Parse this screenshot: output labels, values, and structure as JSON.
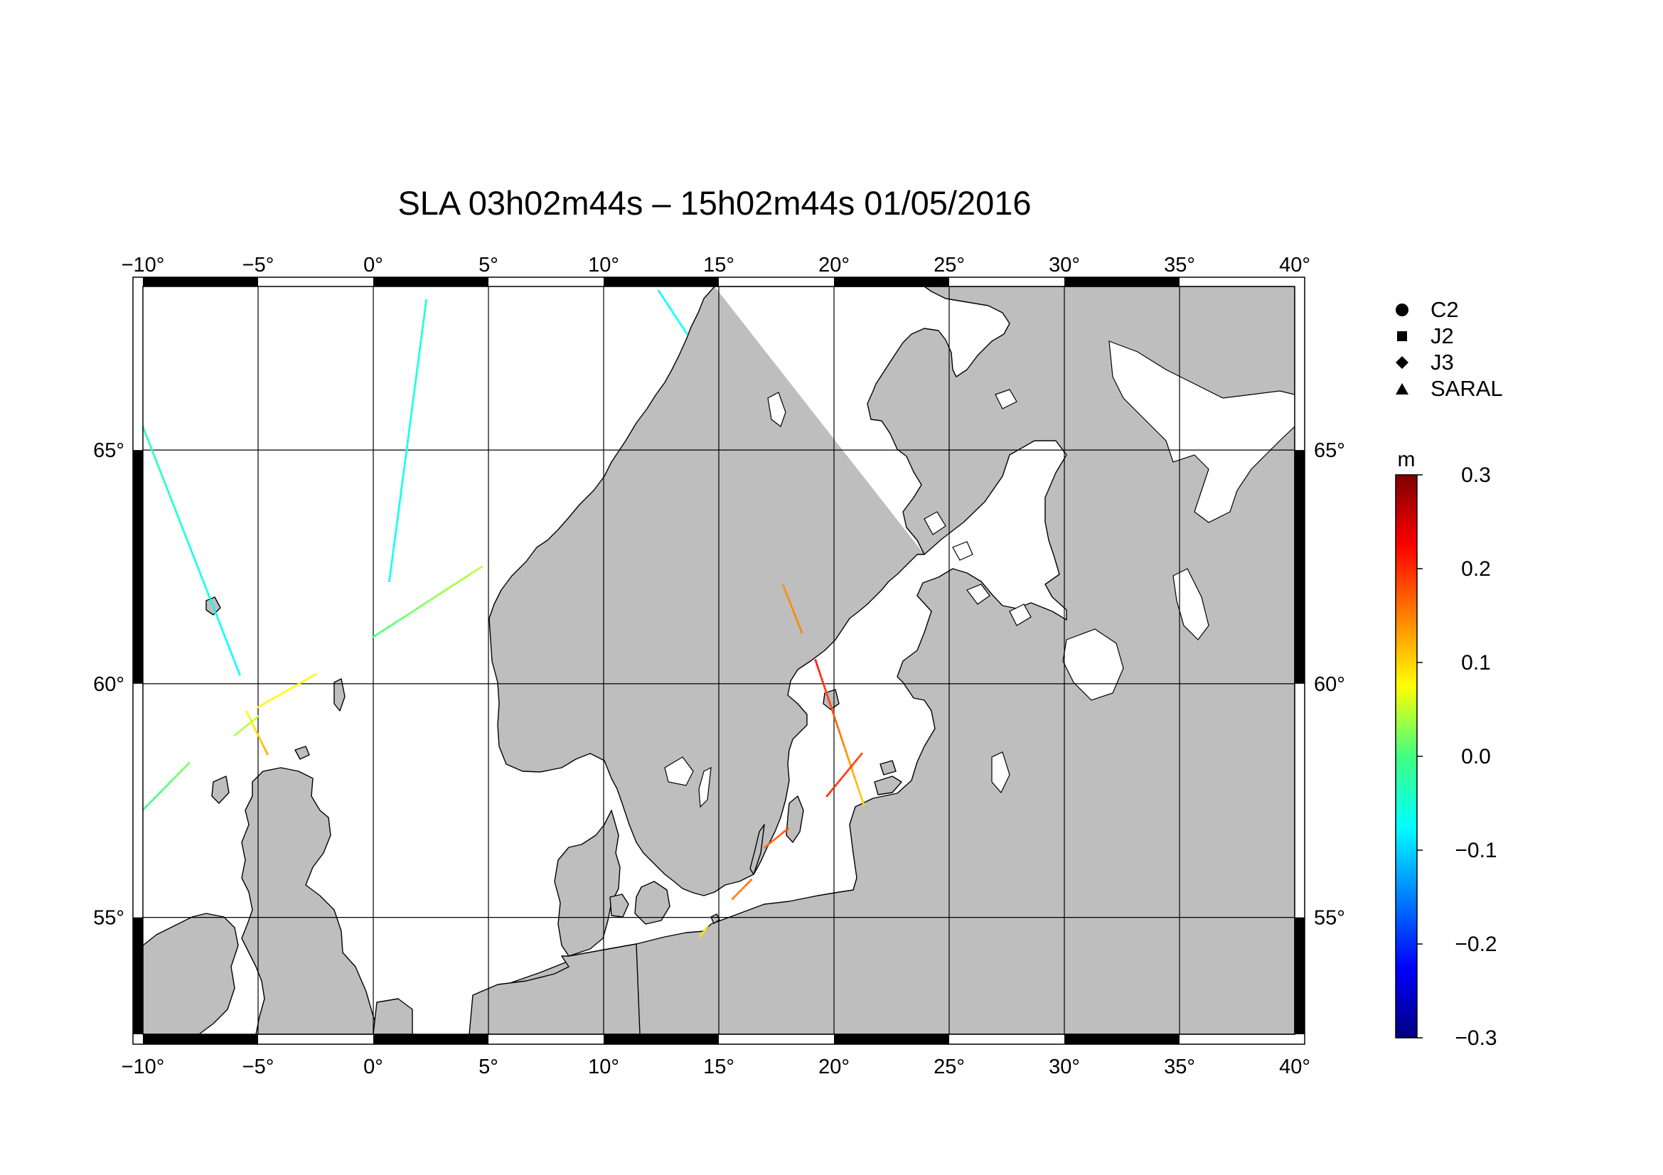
{
  "title": "SLA 03h02m44s – 15h02m44s 01/05/2016",
  "map": {
    "lon_range": [
      -10,
      40
    ],
    "lat_range": [
      52.5,
      68.5
    ],
    "lon_ticks": [
      -10,
      -5,
      0,
      5,
      10,
      15,
      20,
      25,
      30,
      35,
      40
    ],
    "lat_ticks": [
      55,
      60,
      65
    ],
    "lon_tick_labels": [
      "−10°",
      "−5°",
      "0°",
      "5°",
      "10°",
      "15°",
      "20°",
      "25°",
      "30°",
      "35°",
      "40°"
    ],
    "lat_tick_labels": [
      "55°",
      "60°",
      "65°"
    ],
    "grid": true,
    "land_color": "#bebebe",
    "sea_color": "#ffffff"
  },
  "legend": {
    "items": [
      {
        "label": "C2",
        "symbol": "circle"
      },
      {
        "label": "J2",
        "symbol": "square"
      },
      {
        "label": "J3",
        "symbol": "diamond"
      },
      {
        "label": "SARAL",
        "symbol": "triangle"
      }
    ]
  },
  "colorbar": {
    "unit": "m",
    "min": -0.3,
    "max": 0.3,
    "ticks": [
      -0.3,
      -0.2,
      -0.1,
      0.0,
      0.1,
      0.2,
      0.3
    ],
    "tick_labels": [
      "−0.3",
      "−0.2",
      "−0.1",
      "0.0",
      "0.1",
      "0.2",
      "0.3"
    ],
    "colormap": "jet"
  },
  "chart_data": {
    "type": "scatter",
    "title": "SLA 03h02m44s – 15h02m44s 01/05/2016",
    "x_unit": "longitude (deg)",
    "y_unit": "latitude (deg)",
    "value_unit": "m",
    "tracks": [
      {
        "from": [
          2.3,
          68.2
        ],
        "to": [
          0.7,
          62.2
        ],
        "value_start": -0.05,
        "value_end": -0.07
      },
      {
        "from": [
          -10.0,
          65.5
        ],
        "to": [
          -5.8,
          60.2
        ],
        "value_start": -0.03,
        "value_end": -0.08
      },
      {
        "from": [
          -5.5,
          59.4
        ],
        "to": [
          -4.6,
          58.5
        ],
        "value_start": 0.07,
        "value_end": 0.13
      },
      {
        "from": [
          0.0,
          61.0
        ],
        "to": [
          4.7,
          62.5
        ],
        "value_start": 0.0,
        "value_end": 0.05
      },
      {
        "from": [
          -5.0,
          59.5
        ],
        "to": [
          -2.5,
          60.2
        ],
        "value_start": 0.07,
        "value_end": 0.08
      },
      {
        "from": [
          -10.0,
          57.3
        ],
        "to": [
          -8.0,
          58.3
        ],
        "value_start": -0.01,
        "value_end": 0.02
      },
      {
        "from": [
          -6.0,
          58.9
        ],
        "to": [
          -5.0,
          59.3
        ],
        "value_start": 0.04,
        "value_end": 0.05
      },
      {
        "from": [
          12.4,
          68.4
        ],
        "to": [
          13.6,
          67.5
        ],
        "value_start": -0.08,
        "value_end": -0.07
      },
      {
        "from": [
          19.2,
          60.5
        ],
        "to": [
          21.3,
          57.4
        ],
        "value_start": 0.22,
        "value_end": 0.1
      },
      {
        "from": [
          17.8,
          62.1
        ],
        "to": [
          18.6,
          61.1
        ],
        "value_start": 0.14,
        "value_end": 0.15
      },
      {
        "from": [
          19.7,
          57.6
        ],
        "to": [
          21.2,
          58.5
        ],
        "value_start": 0.2,
        "value_end": 0.19
      },
      {
        "from": [
          17.0,
          56.5
        ],
        "to": [
          18.0,
          56.9
        ],
        "value_start": 0.16,
        "value_end": 0.18
      },
      {
        "from": [
          15.6,
          55.4
        ],
        "to": [
          16.4,
          55.8
        ],
        "value_start": 0.15,
        "value_end": 0.16
      },
      {
        "from": [
          14.2,
          54.6
        ],
        "to": [
          14.5,
          54.8
        ],
        "value_start": 0.09,
        "value_end": 0.08
      }
    ]
  }
}
